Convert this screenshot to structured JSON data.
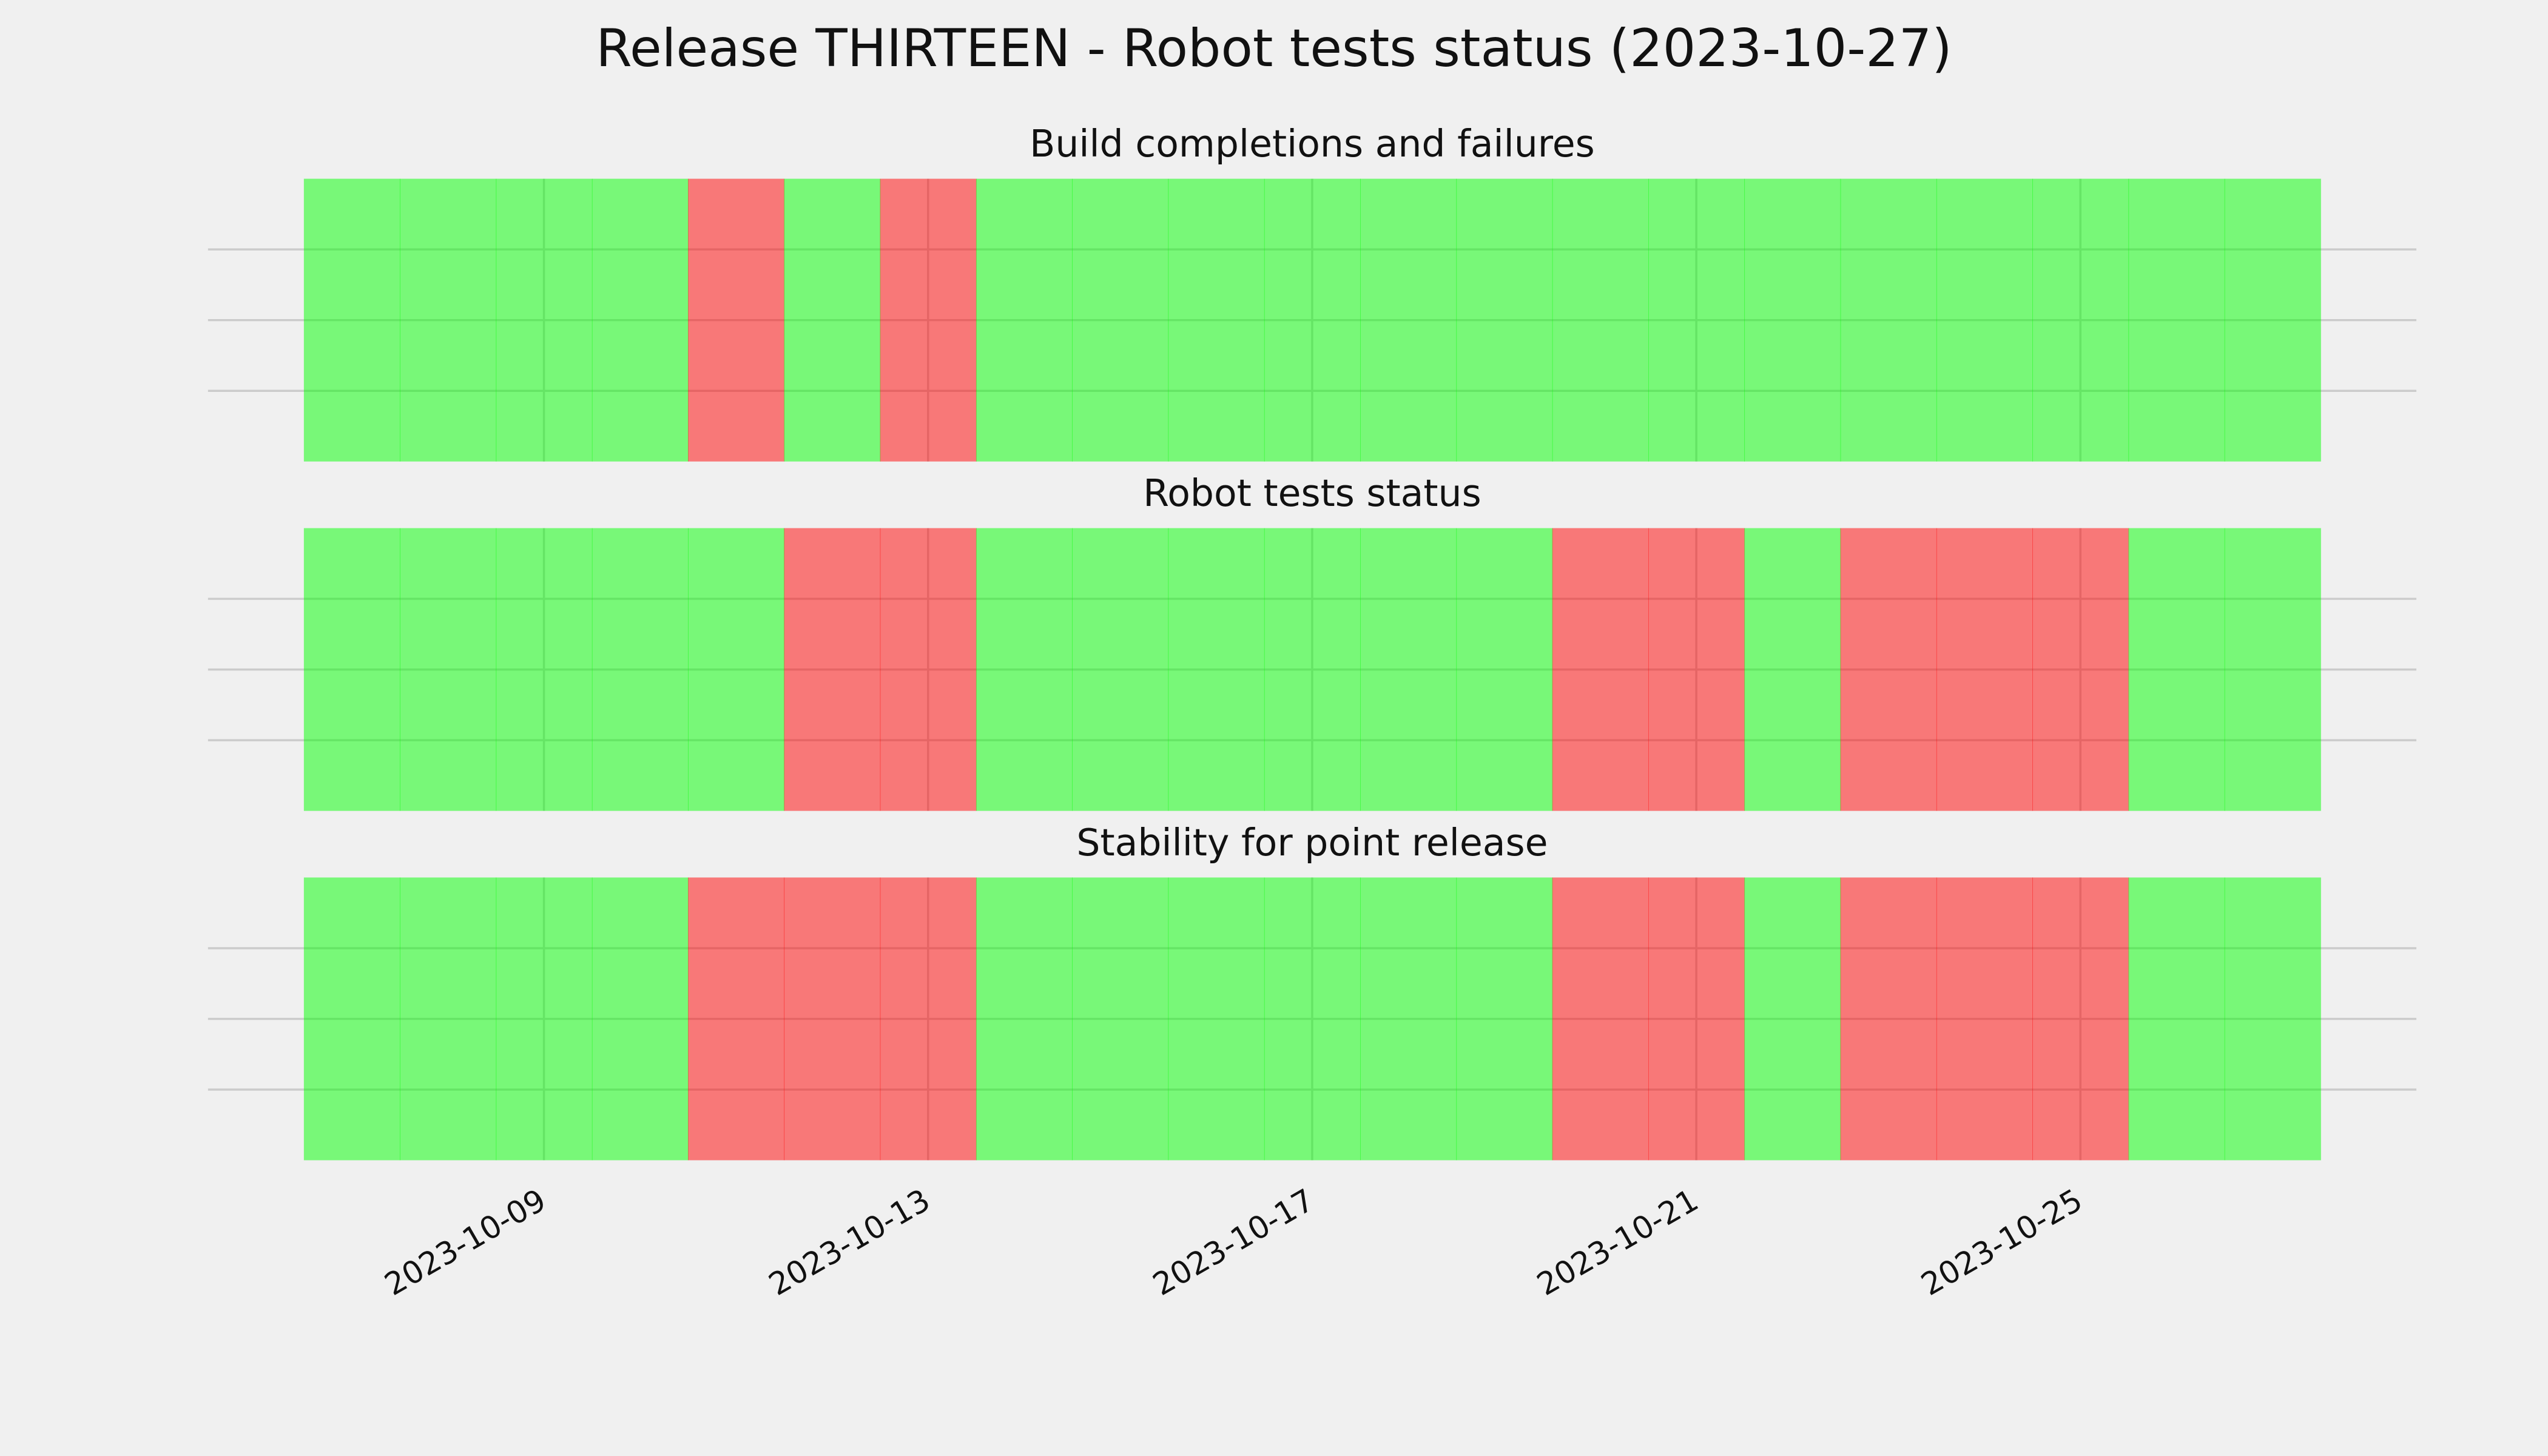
{
  "chart_data": {
    "type": "timeline",
    "title": "Release THIRTEEN - Robot tests status (2023-10-27)",
    "categories": [
      "2023-10-07",
      "2023-10-08",
      "2023-10-09",
      "2023-10-10",
      "2023-10-11",
      "2023-10-12",
      "2023-10-13",
      "2023-10-14",
      "2023-10-15",
      "2023-10-16",
      "2023-10-17",
      "2023-10-18",
      "2023-10-19",
      "2023-10-20",
      "2023-10-21",
      "2023-10-22",
      "2023-10-23",
      "2023-10-24",
      "2023-10-25",
      "2023-10-26",
      "2023-10-27"
    ],
    "xticks": [
      "2023-10-09",
      "2023-10-13",
      "2023-10-17",
      "2023-10-21",
      "2023-10-25"
    ],
    "colors": [
      "#ff0000",
      "#00ff00"
    ],
    "ylim": [
      0,
      1
    ],
    "ygrid": [
      0.25,
      0.5,
      0.75
    ],
    "panels": [
      {
        "subtitle": "Build completions and failures",
        "values": [
          1,
          1,
          1,
          1,
          0,
          1,
          0,
          1,
          1,
          1,
          1,
          1,
          1,
          1,
          1,
          1,
          1,
          1,
          1,
          1,
          1
        ]
      },
      {
        "subtitle": "Robot tests status",
        "values": [
          1,
          1,
          1,
          1,
          1,
          0,
          0,
          1,
          1,
          1,
          1,
          1,
          1,
          0,
          0,
          1,
          0,
          0,
          0,
          1,
          1
        ]
      },
      {
        "subtitle": "Stability for point release",
        "values": [
          1,
          1,
          1,
          1,
          0,
          0,
          0,
          1,
          1,
          1,
          1,
          1,
          1,
          0,
          0,
          1,
          0,
          0,
          0,
          1,
          1
        ]
      }
    ]
  }
}
